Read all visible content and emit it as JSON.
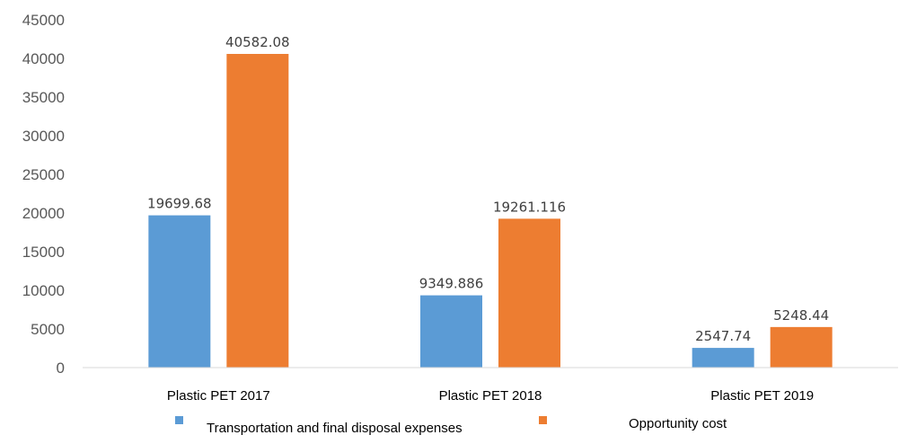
{
  "chart_data": {
    "type": "bar",
    "title": "",
    "xlabel": "",
    "ylabel": "",
    "categories": [
      "Plastic PET 2017",
      "Plastic PET 2018",
      "Plastic PET 2019"
    ],
    "series": [
      {
        "name": "Transportation and final disposal expenses",
        "color": "#5B9BD5",
        "values": [
          19699.68,
          9349.886,
          2547.74
        ],
        "labels": [
          "19699.68",
          "9349.886",
          "2547.74"
        ]
      },
      {
        "name": "Opportunity cost",
        "color": "#ED7D31",
        "values": [
          40582.08,
          19261.116,
          5248.44
        ],
        "labels": [
          "40582.08",
          "19261.116",
          "5248.44"
        ]
      }
    ],
    "ylim": [
      0,
      45000
    ],
    "yticks": [
      "0",
      "5000",
      "10000",
      "15000",
      "20000",
      "25000",
      "30000",
      "35000",
      "40000",
      "45000"
    ],
    "grid": false,
    "legend_position": "bottom"
  }
}
